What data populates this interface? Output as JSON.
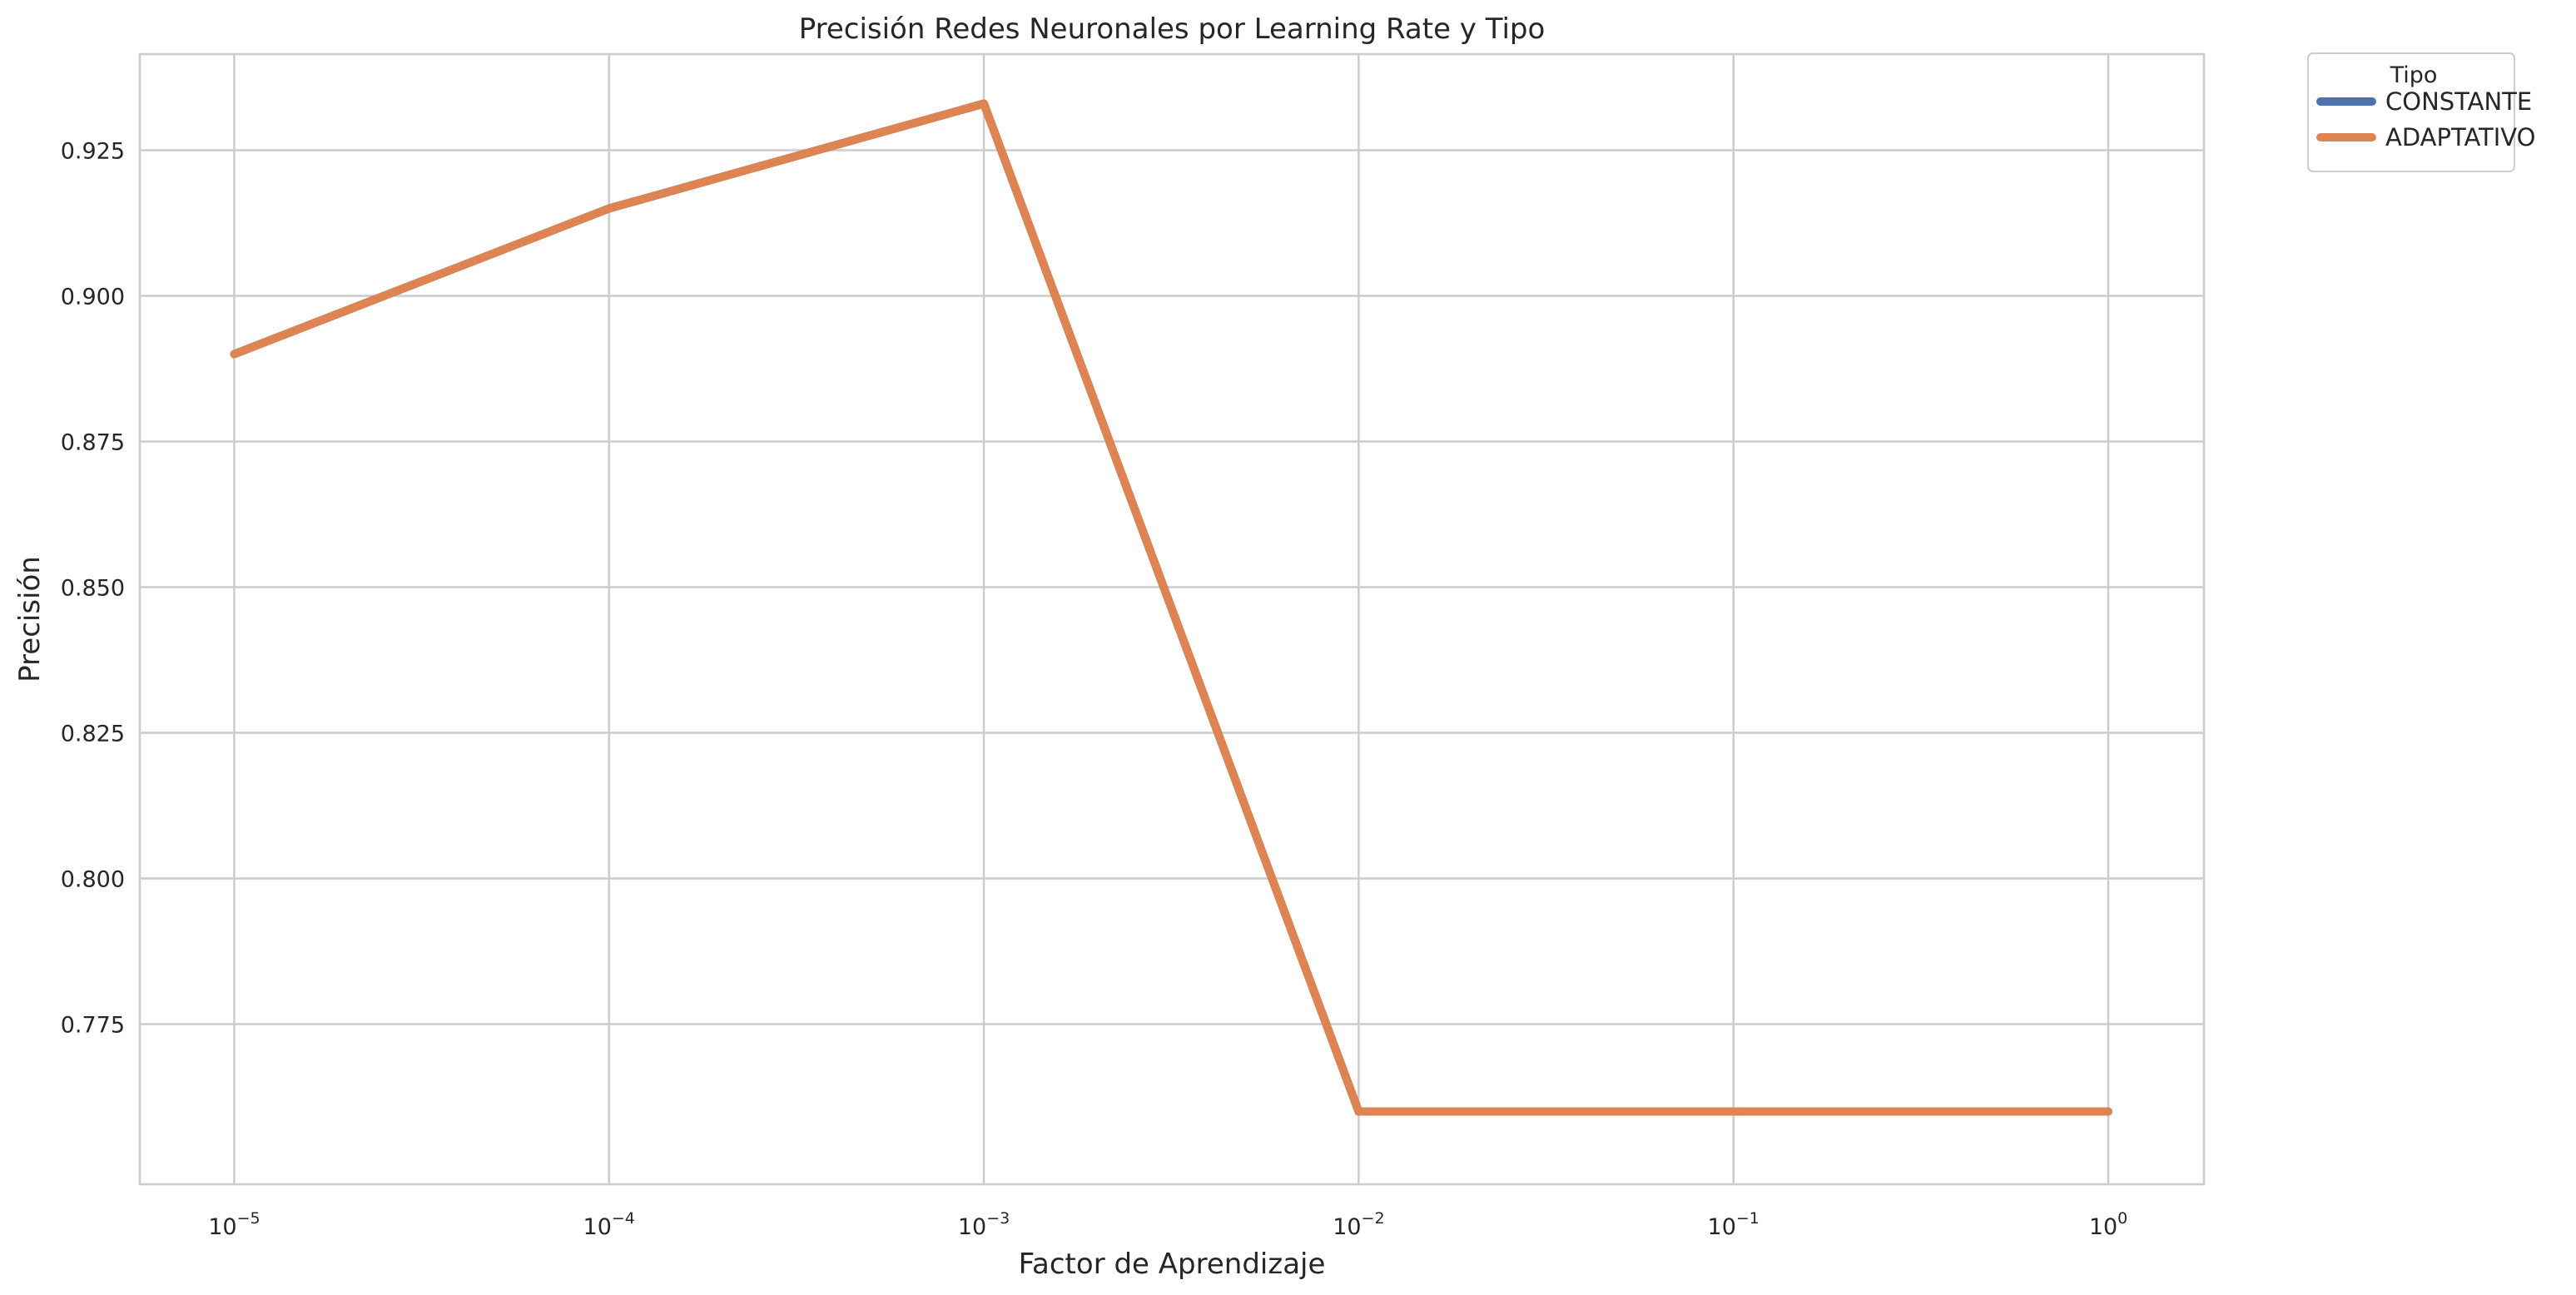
{
  "chart_data": {
    "type": "line",
    "title": "Precisión Redes Neuronales por Learning Rate y Tipo",
    "xlabel": "Factor de Aprendizaje",
    "ylabel": "Precisión",
    "xscale": "log",
    "xlim": [
      5.6e-06,
      1.8
    ],
    "ylim": [
      0.7475,
      0.9415
    ],
    "grid": true,
    "legend": {
      "title": "Tipo",
      "placement": "outside-top-right"
    },
    "x_ticks": [
      {
        "base": "10",
        "exp": "−5",
        "value": 1e-05
      },
      {
        "base": "10",
        "exp": "−4",
        "value": 0.0001
      },
      {
        "base": "10",
        "exp": "−3",
        "value": 0.001
      },
      {
        "base": "10",
        "exp": "−2",
        "value": 0.01
      },
      {
        "base": "10",
        "exp": "−1",
        "value": 0.1
      },
      {
        "base": "10",
        "exp": "0",
        "value": 1
      }
    ],
    "y_ticks": [
      "0.775",
      "0.800",
      "0.825",
      "0.850",
      "0.875",
      "0.900",
      "0.925"
    ],
    "series": [
      {
        "name": "CONSTANTE",
        "color": "#4c72b0",
        "x": [
          1e-05,
          0.0001,
          0.001,
          0.01,
          0.1,
          1
        ],
        "values": [
          0.89,
          0.915,
          0.933,
          0.76,
          0.76,
          0.76
        ]
      },
      {
        "name": "ADAPTATIVO",
        "color": "#dd8452",
        "x": [
          1e-05,
          0.0001,
          0.001,
          0.01,
          0.1,
          1
        ],
        "values": [
          0.89,
          0.915,
          0.933,
          0.76,
          0.76,
          0.76
        ]
      }
    ]
  }
}
